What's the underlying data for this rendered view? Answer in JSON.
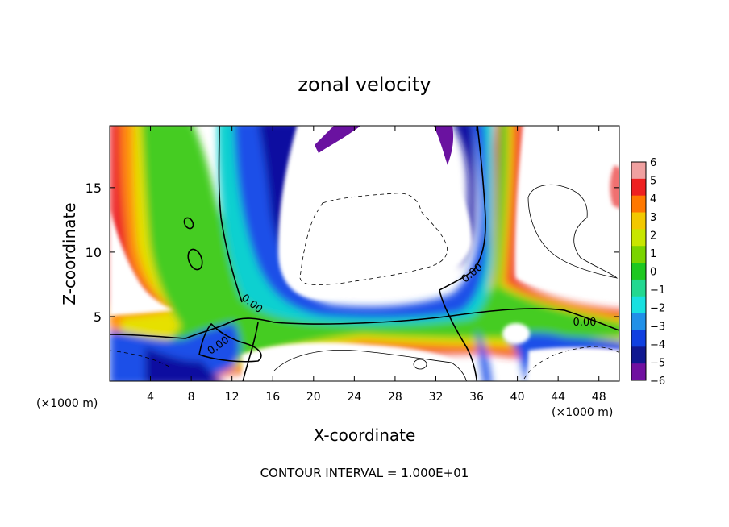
{
  "chart_data": {
    "type": "heatmap",
    "title": "zonal velocity",
    "xlabel": "X-coordinate",
    "ylabel": "Z-coordinate",
    "x_unit_left": "(×1000 m)",
    "x_unit_right": "(×1000 m)",
    "xlim": [
      0,
      50
    ],
    "ylim": [
      0,
      19.8
    ],
    "x_ticks": [
      {
        "value": 4,
        "label": "4"
      },
      {
        "value": 8,
        "label": "8"
      },
      {
        "value": 12,
        "label": "12"
      },
      {
        "value": 16,
        "label": "16"
      },
      {
        "value": 20,
        "label": "20"
      },
      {
        "value": 24,
        "label": "24"
      },
      {
        "value": 28,
        "label": "28"
      },
      {
        "value": 32,
        "label": "32"
      },
      {
        "value": 36,
        "label": "36"
      },
      {
        "value": 40,
        "label": "40"
      },
      {
        "value": 44,
        "label": "44"
      },
      {
        "value": 48,
        "label": "48"
      }
    ],
    "y_ticks": [
      {
        "value": 5,
        "label": "5"
      },
      {
        "value": 10,
        "label": "10"
      },
      {
        "value": 15,
        "label": "15"
      }
    ],
    "colorbar": {
      "labels": [
        "6",
        "5",
        "4",
        "3",
        "2",
        "1",
        "0",
        "−1",
        "−2",
        "−3",
        "−4",
        "−5",
        "−6"
      ],
      "colors": [
        "#f0a0a0",
        "#ee2020",
        "#ff7800",
        "#f2c800",
        "#c8e600",
        "#7ad400",
        "#1ec820",
        "#22d890",
        "#18e0e0",
        "#2090e8",
        "#1040e0",
        "#101890",
        "#7010a0"
      ]
    },
    "contour_labels": [
      "0.00",
      "0.00",
      "0.00",
      "0.00",
      "0.00"
    ],
    "footer": "CONTOUR INTERVAL = 1.000E+01"
  }
}
